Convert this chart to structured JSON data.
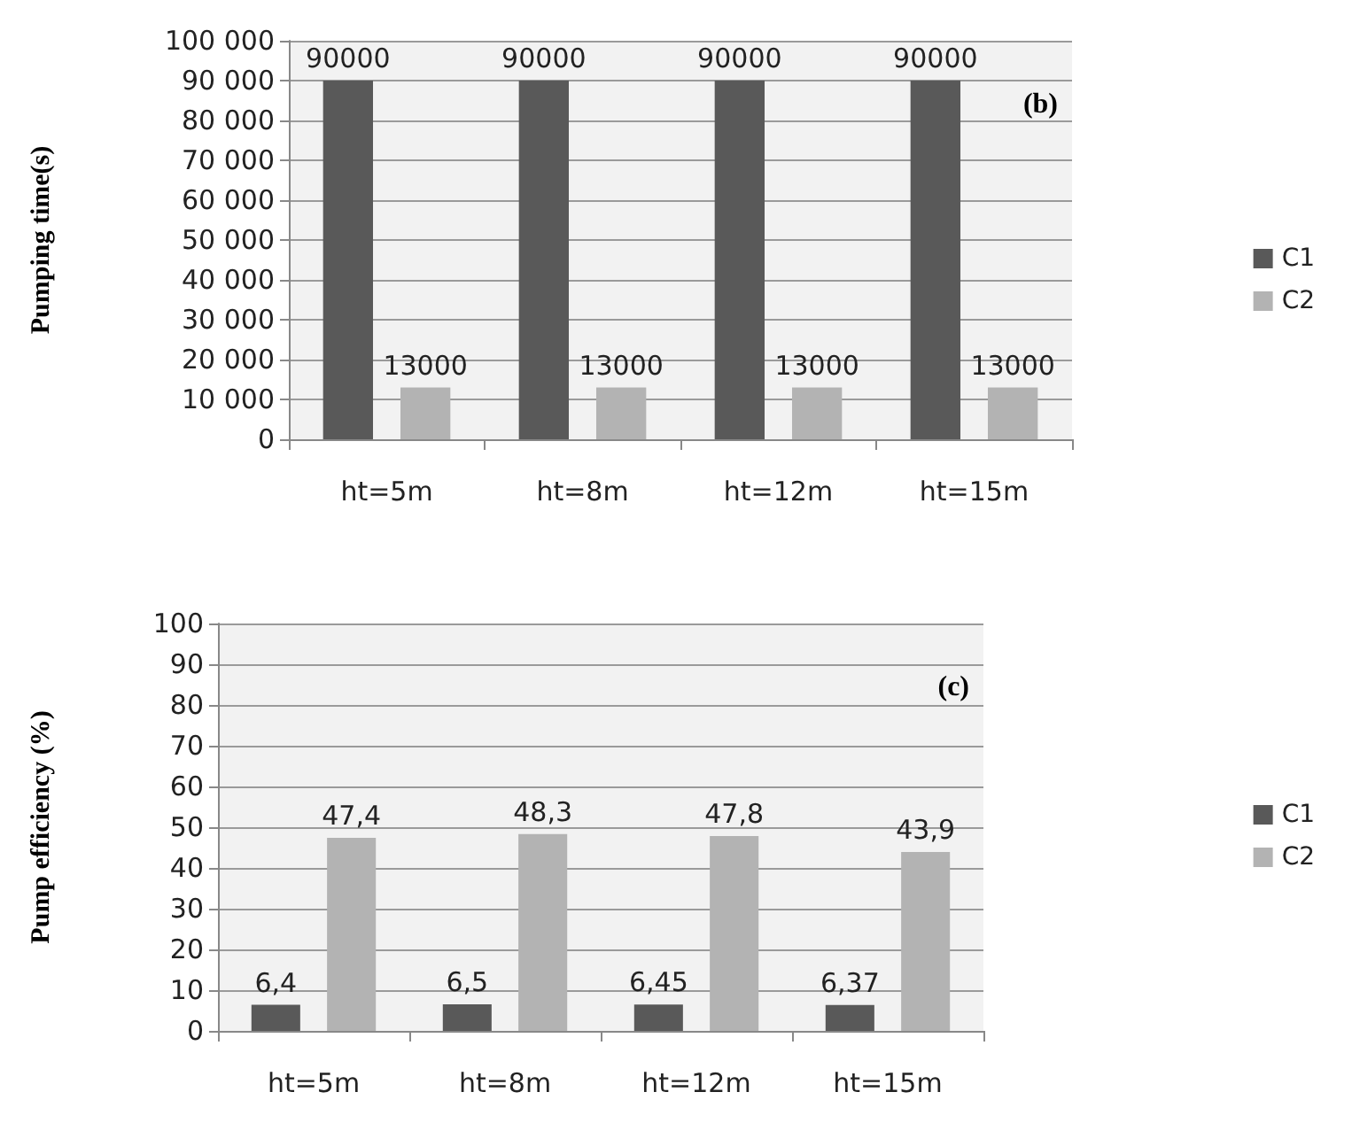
{
  "chart_data": [
    {
      "type": "bar",
      "ylabel": "Pumping time(s)",
      "annotations": [
        "(b)"
      ],
      "categories": [
        "ht=5m",
        "ht=8m",
        "ht=12m",
        "ht=15m"
      ],
      "series": [
        {
          "name": "C1",
          "color": "#595959",
          "values": [
            90000,
            90000,
            90000,
            90000
          ]
        },
        {
          "name": "C2",
          "color": "#b3b3b3",
          "values": [
            13000,
            13000,
            13000,
            13000
          ]
        }
      ],
      "ylim": [
        0,
        100000
      ],
      "yticks": [
        {
          "value": 0,
          "label": "0"
        },
        {
          "value": 10000,
          "label": "10 000"
        },
        {
          "value": 20000,
          "label": "20 000"
        },
        {
          "value": 30000,
          "label": "30 000"
        },
        {
          "value": 40000,
          "label": "40 000"
        },
        {
          "value": 50000,
          "label": "50 000"
        },
        {
          "value": 60000,
          "label": "60 000"
        },
        {
          "value": 70000,
          "label": "70 000"
        },
        {
          "value": 80000,
          "label": "80 000"
        },
        {
          "value": 90000,
          "label": "90 000"
        },
        {
          "value": 100000,
          "label": "100 000"
        }
      ],
      "data_labels": true,
      "grid": "y",
      "legend": "right"
    },
    {
      "type": "bar",
      "ylabel": "Pump efficiency (%)",
      "annotations": [
        "(c)"
      ],
      "categories": [
        "ht=5m",
        "ht=8m",
        "ht=12m",
        "ht=15m"
      ],
      "series": [
        {
          "name": "C1",
          "color": "#595959",
          "values": [
            6.4,
            6.5,
            6.45,
            6.37
          ],
          "value_labels": [
            "6,4",
            "6,5",
            "6,45",
            "6,37"
          ]
        },
        {
          "name": "C2",
          "color": "#b3b3b3",
          "values": [
            47.4,
            48.3,
            47.8,
            43.9
          ],
          "value_labels": [
            "47,4",
            "48,3",
            "47,8",
            "43,9"
          ]
        }
      ],
      "ylim": [
        0,
        100
      ],
      "yticks": [
        0,
        10,
        20,
        30,
        40,
        50,
        60,
        70,
        80,
        90,
        100
      ],
      "grid": "y",
      "legend": "right"
    }
  ]
}
